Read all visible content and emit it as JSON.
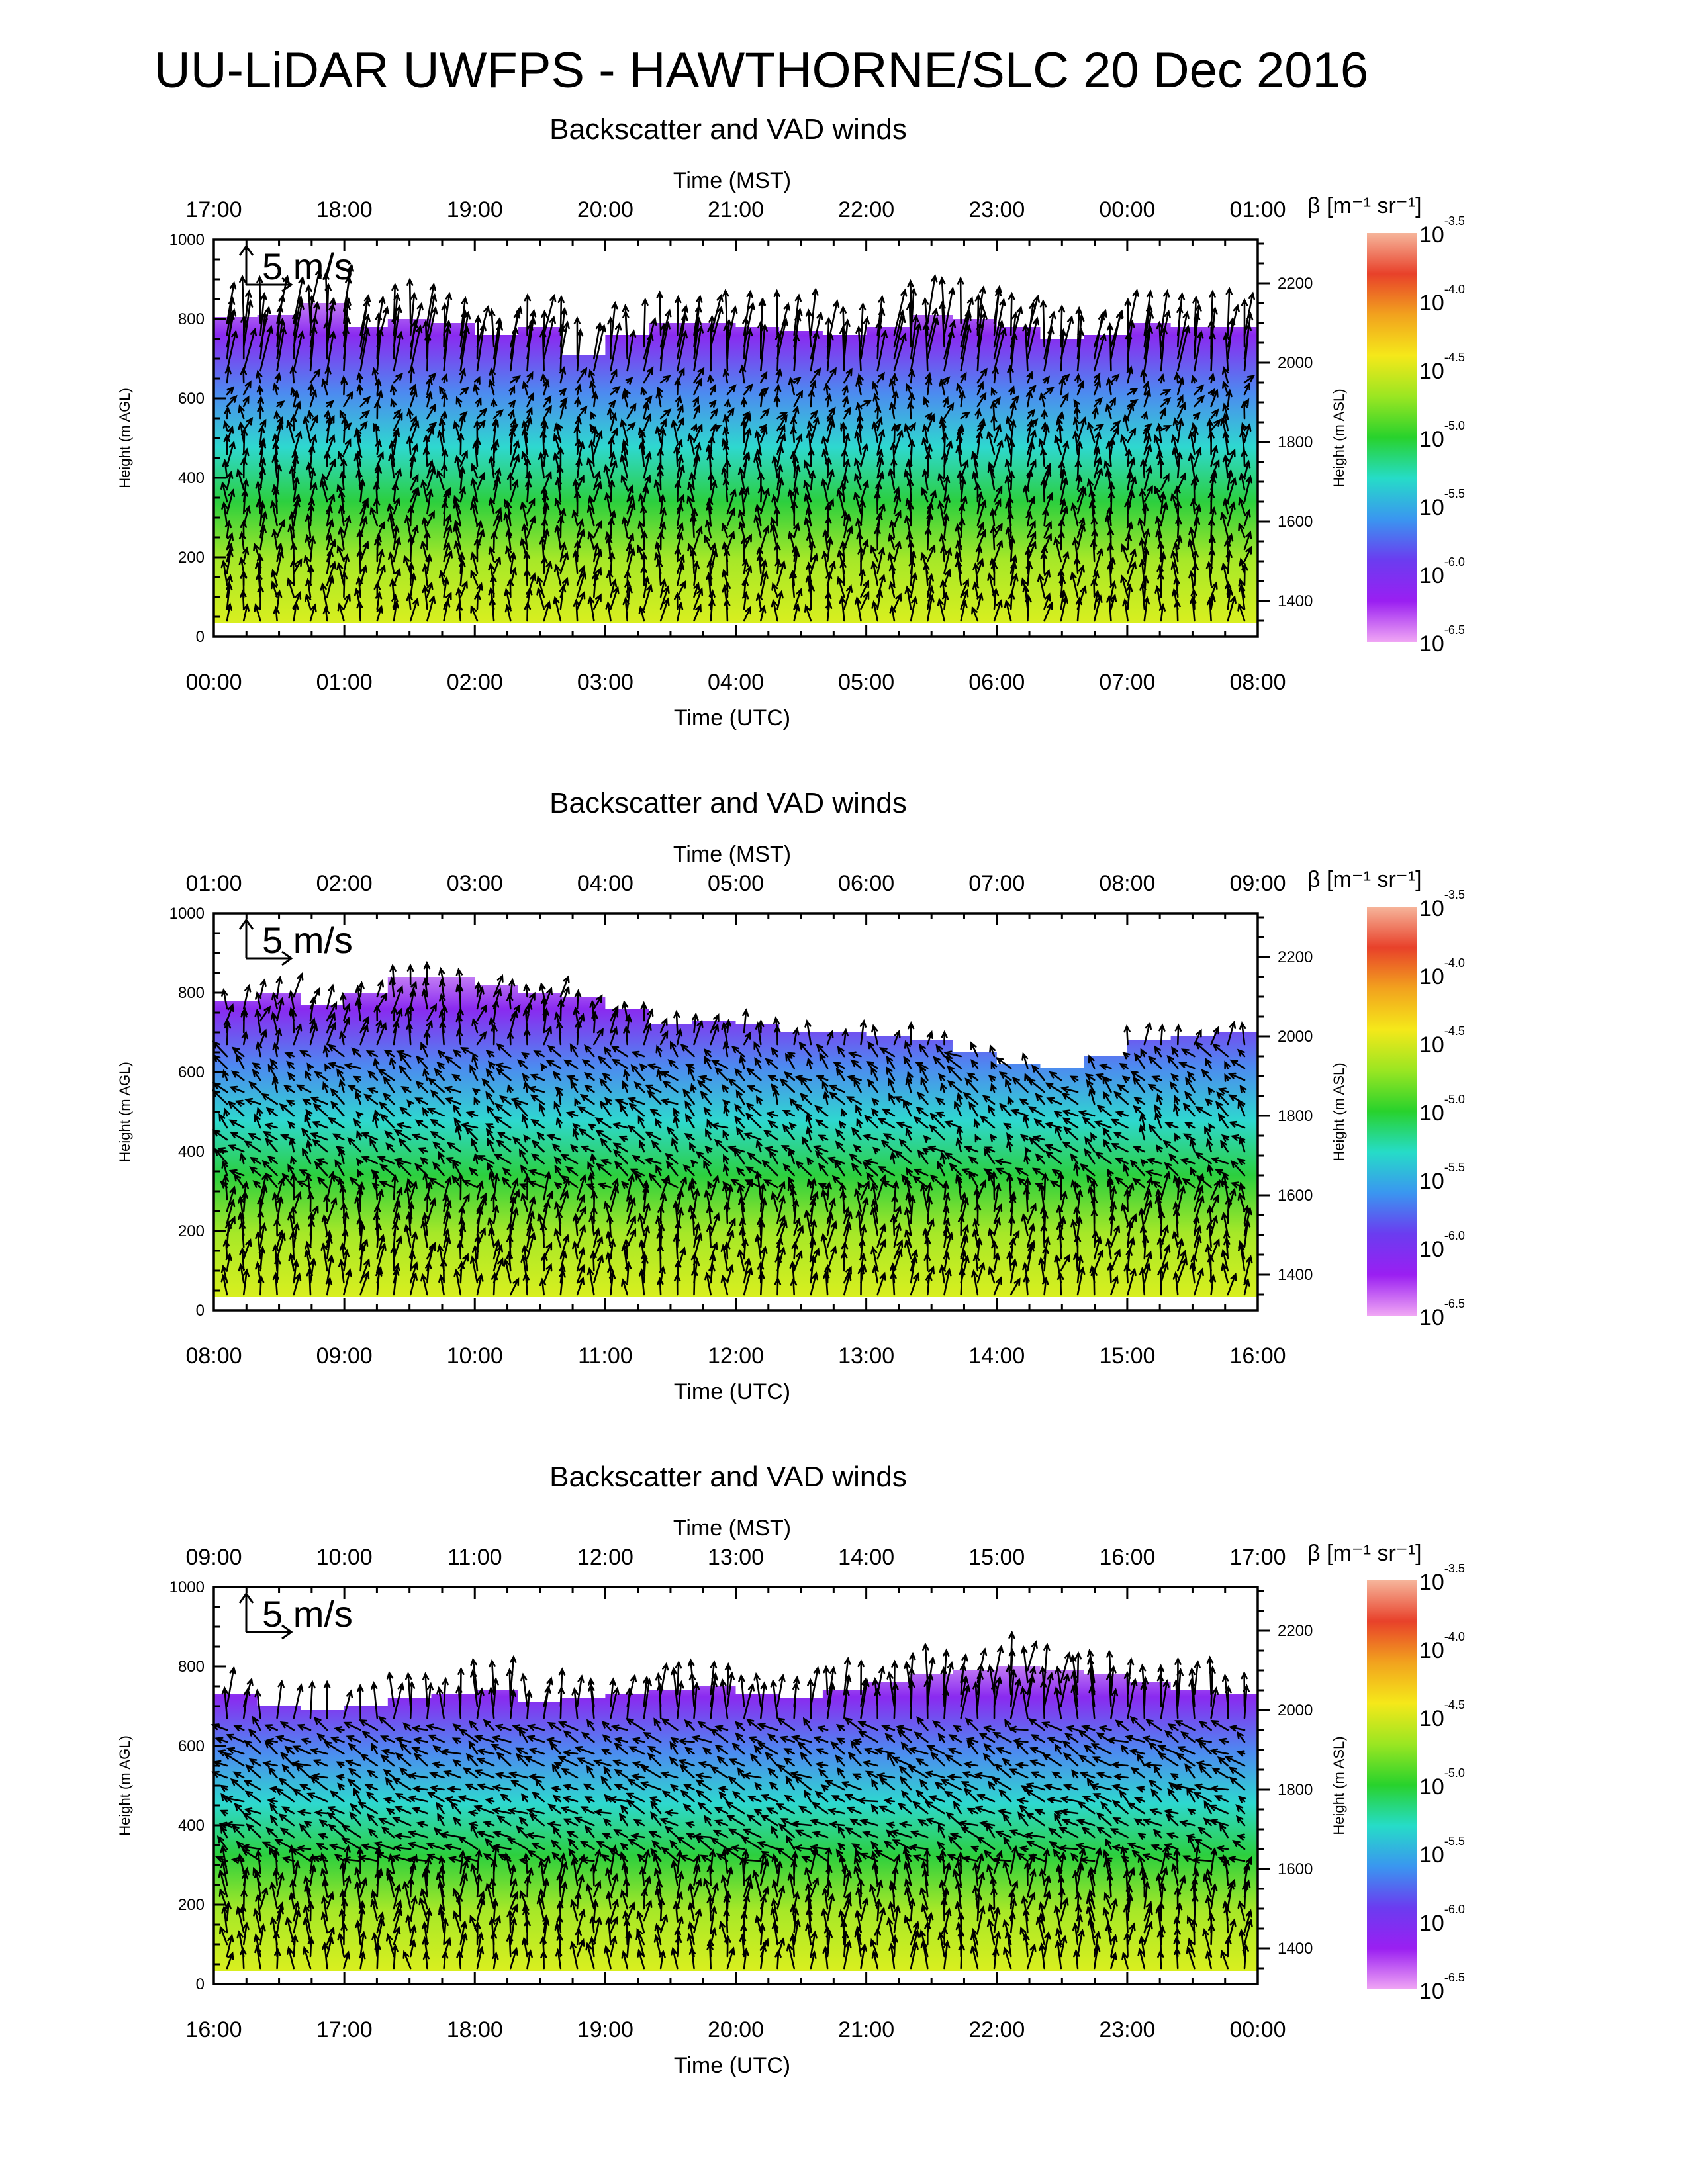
{
  "title": "UU-LiDAR UWFPS - HAWTHORNE/SLC 20 Dec 2016",
  "colorbar": {
    "label": "β [m⁻¹ sr⁻¹]",
    "exponents": [
      "-3.5",
      "-4.0",
      "-4.5",
      "-5.0",
      "-5.5",
      "-6.0",
      "-6.5"
    ],
    "base": "10",
    "colors": [
      "#f6b59b",
      "#e8412a",
      "#f2a21e",
      "#f5e81a",
      "#9be622",
      "#28d22c",
      "#26dcc8",
      "#3a96f0",
      "#6b3cf0",
      "#9a1ff2",
      "#f0a6f4"
    ]
  },
  "wind_scale_label": "5 m/s",
  "chart_data": [
    {
      "type": "heatmap",
      "title": "Backscatter and VAD winds",
      "x_top_label": "Time (MST)",
      "x_top_ticks": [
        "17:00",
        "18:00",
        "19:00",
        "20:00",
        "21:00",
        "22:00",
        "23:00",
        "00:00",
        "01:00"
      ],
      "x_bottom_label": "Time (UTC)",
      "x_bottom_ticks": [
        "00:00",
        "01:00",
        "02:00",
        "03:00",
        "04:00",
        "05:00",
        "06:00",
        "07:00",
        "08:00"
      ],
      "y_label": "Height (m AGL)",
      "y_ticks": [
        0,
        200,
        400,
        600,
        800,
        1000
      ],
      "ylim": [
        0,
        1000
      ],
      "y_right_label": "Height (m ASL)",
      "y_right_ticks": [
        1400,
        1600,
        1800,
        2000,
        2200
      ],
      "y_right_lim": [
        1310,
        2310
      ],
      "cloud_top_m": [
        805,
        810,
        840,
        780,
        800,
        790,
        760,
        780,
        710,
        760,
        790,
        790,
        780,
        770,
        760,
        780,
        810,
        800,
        780,
        750,
        760,
        790,
        780,
        780
      ],
      "wind_profile": [
        {
          "h": [
            0,
            500
          ],
          "u": 0.1,
          "v": 2.2
        },
        {
          "h": [
            500,
            650
          ],
          "u": 0.3,
          "v": 1.2
        },
        {
          "h": [
            650,
            850
          ],
          "u": 0.5,
          "v": 4.8
        }
      ]
    },
    {
      "type": "heatmap",
      "title": "Backscatter and VAD winds",
      "x_top_label": "Time (MST)",
      "x_top_ticks": [
        "01:00",
        "02:00",
        "03:00",
        "04:00",
        "05:00",
        "06:00",
        "07:00",
        "08:00",
        "09:00"
      ],
      "x_bottom_label": "Time (UTC)",
      "x_bottom_ticks": [
        "08:00",
        "09:00",
        "10:00",
        "11:00",
        "12:00",
        "13:00",
        "14:00",
        "15:00",
        "16:00"
      ],
      "y_label": "Height (m AGL)",
      "y_ticks": [
        0,
        200,
        400,
        600,
        800,
        1000
      ],
      "ylim": [
        0,
        1000
      ],
      "y_right_label": "Height (m ASL)",
      "y_right_ticks": [
        1400,
        1600,
        1800,
        2000,
        2200
      ],
      "y_right_lim": [
        1310,
        2310
      ],
      "cloud_top_m": [
        780,
        800,
        770,
        800,
        840,
        840,
        820,
        800,
        790,
        760,
        720,
        730,
        720,
        700,
        700,
        690,
        680,
        650,
        620,
        610,
        640,
        680,
        690,
        700
      ],
      "wind_profile": [
        {
          "h": [
            0,
            300
          ],
          "u": 0.2,
          "v": 2.4
        },
        {
          "h": [
            300,
            650
          ],
          "u": -1.0,
          "v": 1.0
        },
        {
          "h": [
            650,
            850
          ],
          "u": 0.3,
          "v": 2.0
        }
      ]
    },
    {
      "type": "heatmap",
      "title": "Backscatter and VAD winds",
      "x_top_label": "Time (MST)",
      "x_top_ticks": [
        "09:00",
        "10:00",
        "11:00",
        "12:00",
        "13:00",
        "14:00",
        "15:00",
        "16:00",
        "17:00"
      ],
      "x_bottom_label": "Time (UTC)",
      "x_bottom_ticks": [
        "16:00",
        "17:00",
        "18:00",
        "19:00",
        "20:00",
        "21:00",
        "22:00",
        "23:00",
        "00:00"
      ],
      "y_label": "Height (m AGL)",
      "y_ticks": [
        0,
        200,
        400,
        600,
        800,
        1000
      ],
      "ylim": [
        0,
        1000
      ],
      "y_right_label": "Height (m ASL)",
      "y_right_ticks": [
        1400,
        1600,
        1800,
        2000,
        2200
      ],
      "y_right_lim": [
        1310,
        2310
      ],
      "cloud_top_m": [
        730,
        700,
        690,
        700,
        720,
        730,
        740,
        710,
        720,
        730,
        740,
        750,
        730,
        720,
        740,
        760,
        780,
        790,
        800,
        790,
        780,
        760,
        740,
        730
      ],
      "wind_profile": [
        {
          "h": [
            0,
            300
          ],
          "u": 0.0,
          "v": 2.4
        },
        {
          "h": [
            300,
            650
          ],
          "u": -1.4,
          "v": 0.8
        },
        {
          "h": [
            650,
            980
          ],
          "u": 0.2,
          "v": 3.8
        }
      ]
    }
  ]
}
